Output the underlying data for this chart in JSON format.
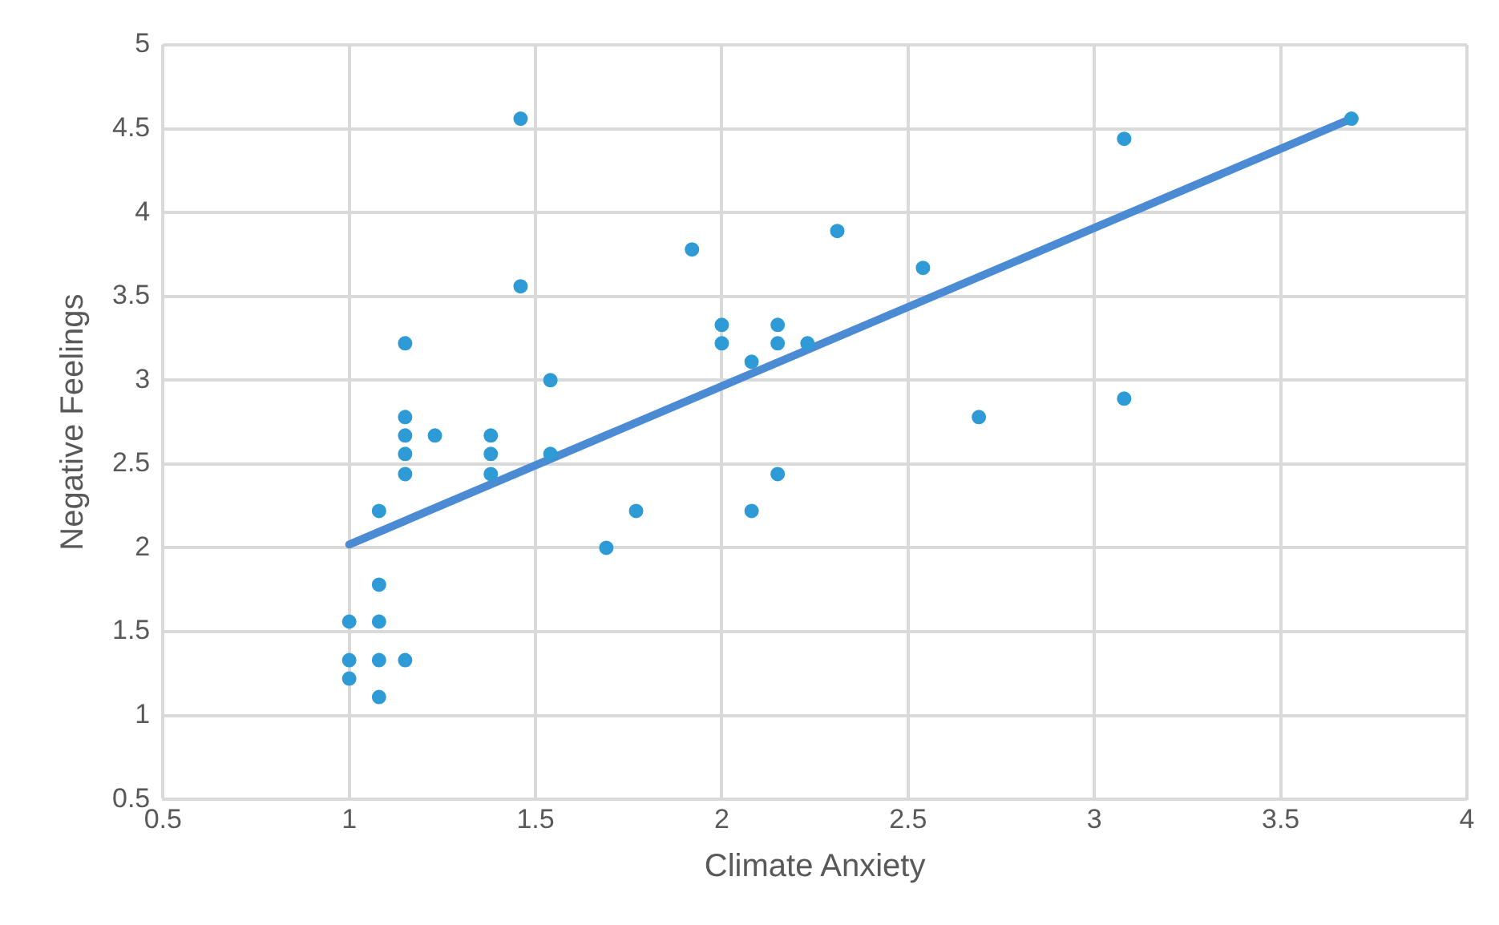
{
  "chart_data": {
    "type": "scatter",
    "xlabel": "Climate Anxiety",
    "ylabel": "Negative Feelings",
    "xlim": [
      0.5,
      4
    ],
    "xticks": [
      0.5,
      1,
      1.5,
      2,
      2.5,
      3,
      3.5,
      4
    ],
    "ylim": [
      0.5,
      5
    ],
    "yticks": [
      0.5,
      1,
      1.5,
      2,
      2.5,
      3,
      3.5,
      4,
      4.5,
      5
    ],
    "grid": true,
    "legend": false,
    "marker": "circle",
    "series": [
      {
        "color": "#2e9bd6",
        "x": [
          1,
          1,
          1,
          1.08,
          1.08,
          1.08,
          1.08,
          1.08,
          1.15,
          1.15,
          1.15,
          1.15,
          1.15,
          1.15,
          1.23,
          1.38,
          1.38,
          1.38,
          1.46,
          1.46,
          1.54,
          1.54,
          1.69,
          1.77,
          1.92,
          2,
          2,
          2.08,
          2.08,
          2.15,
          2.15,
          2.15,
          2.23,
          2.31,
          2.54,
          2.69,
          3.08,
          3.08,
          3.69
        ],
        "values": [
          1.56,
          1.33,
          1.22,
          2.22,
          1.78,
          1.56,
          1.33,
          1.11,
          3.22,
          2.78,
          2.67,
          2.56,
          2.44,
          1.33,
          2.67,
          2.67,
          2.56,
          2.44,
          4.56,
          3.56,
          3,
          2.56,
          2,
          2.22,
          3.78,
          3.33,
          3.22,
          3.11,
          2.22,
          3.33,
          3.22,
          2.44,
          3.22,
          3.89,
          3.67,
          2.78,
          4.44,
          2.89,
          4.56
        ]
      },
      {
        "type": "line",
        "color": "#4a8bd4",
        "marker": "none",
        "x": [
          1,
          3.69
        ],
        "values": [
          2.02,
          4.56
        ]
      }
    ]
  }
}
